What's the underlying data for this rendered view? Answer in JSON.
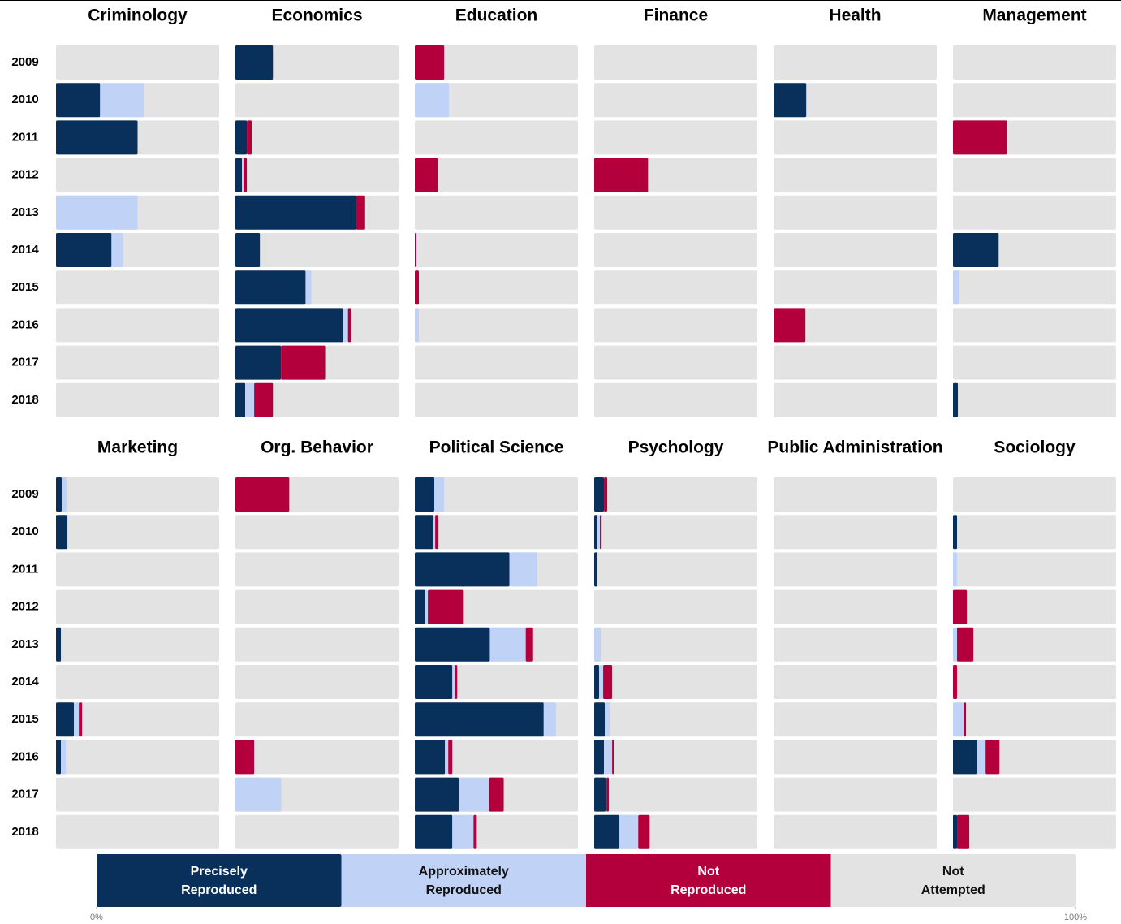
{
  "chart_data": {
    "type": "bar",
    "stacked": true,
    "categories": [
      "2009",
      "2010",
      "2011",
      "2012",
      "2013",
      "2014",
      "2015",
      "2016",
      "2017",
      "2018"
    ],
    "series": [
      {
        "name": "Precisely Reproduced",
        "color": "#08305a"
      },
      {
        "name": "Approximately Reproduced",
        "color": "#c0d2f5"
      },
      {
        "name": "Not Reproduced",
        "color": "#b3003c"
      },
      {
        "name": "Not Attempted",
        "color": "#e3e3e3"
      }
    ],
    "xlim": [
      0,
      100
    ],
    "xticks": [
      {
        "value": 0,
        "label": "0%"
      },
      {
        "value": 100,
        "label": "100%"
      }
    ],
    "panels": [
      {
        "title": "Criminology",
        "values": [
          [
            0,
            27,
            50,
            0,
            0,
            34,
            0,
            0,
            0,
            0
          ],
          [
            0,
            27,
            0,
            0,
            50,
            7,
            0,
            0,
            0,
            0
          ],
          [
            0,
            0,
            0,
            0,
            0,
            0,
            0,
            0,
            0,
            0
          ]
        ]
      },
      {
        "title": "Economics",
        "values": [
          [
            23,
            0,
            7,
            4,
            74,
            15,
            43,
            66,
            28,
            6
          ],
          [
            0,
            0,
            0,
            1,
            0,
            0,
            3.5,
            3,
            0,
            5.5
          ],
          [
            0,
            0,
            3,
            2,
            5.5,
            0,
            0,
            2,
            27,
            11.5
          ]
        ]
      },
      {
        "title": "Education",
        "values": [
          [
            0,
            0,
            0,
            0,
            0,
            0,
            0,
            0,
            0,
            0
          ],
          [
            0,
            21,
            0,
            0,
            0,
            0,
            0,
            2.5,
            0,
            0
          ],
          [
            18,
            0,
            0,
            14,
            0,
            1,
            2.5,
            0,
            0,
            0
          ]
        ]
      },
      {
        "title": "Finance",
        "values": [
          [
            0,
            0,
            0,
            0,
            0,
            0,
            0,
            0,
            0,
            0
          ],
          [
            0,
            0,
            0,
            0,
            0,
            0,
            0,
            0,
            0,
            0
          ],
          [
            0,
            0,
            0,
            33,
            0,
            0,
            0,
            0,
            0,
            0
          ]
        ]
      },
      {
        "title": "Health",
        "values": [
          [
            0,
            20,
            0,
            0,
            0,
            0,
            0,
            0,
            0,
            0
          ],
          [
            0,
            0,
            0,
            0,
            0,
            0,
            0,
            0,
            0,
            0
          ],
          [
            0,
            0,
            0,
            0,
            0,
            0,
            0,
            19.5,
            0,
            0
          ]
        ]
      },
      {
        "title": "Management",
        "values": [
          [
            0,
            0,
            0,
            0,
            0,
            28,
            0,
            0,
            0,
            3
          ],
          [
            0,
            0,
            0,
            0,
            0,
            0,
            4,
            0,
            0,
            0
          ],
          [
            0,
            0,
            33,
            0,
            0,
            0,
            0,
            0,
            0,
            0
          ]
        ]
      },
      {
        "title": "Marketing",
        "values": [
          [
            3.5,
            7,
            0,
            0,
            3,
            0,
            11,
            3,
            0,
            0
          ],
          [
            3,
            0,
            0,
            0,
            0,
            0,
            3,
            3,
            0,
            0
          ],
          [
            0,
            0,
            0,
            0,
            0,
            0,
            2,
            0,
            0,
            0
          ]
        ]
      },
      {
        "title": "Org. Behavior",
        "values": [
          [
            0,
            0,
            0,
            0,
            0,
            0,
            0,
            0,
            0,
            0
          ],
          [
            0,
            0,
            0,
            0,
            0,
            0,
            0,
            0,
            28,
            0
          ],
          [
            33,
            0,
            0,
            0,
            0,
            0,
            0,
            11.5,
            0,
            0
          ]
        ]
      },
      {
        "title": "Political Science",
        "values": [
          [
            12,
            11.5,
            58,
            6.5,
            46,
            23,
            79,
            18.5,
            27,
            23
          ],
          [
            6,
            1,
            17,
            1.5,
            22,
            1.5,
            7.5,
            2,
            18.5,
            13
          ],
          [
            0,
            2,
            0,
            22,
            4.5,
            1.5,
            0,
            2.5,
            9,
            2
          ]
        ]
      },
      {
        "title": "Psychology",
        "values": [
          [
            6,
            2,
            2,
            0,
            0,
            3,
            6.5,
            6,
            7,
            15.5
          ],
          [
            0,
            1.5,
            0,
            0,
            4,
            2.5,
            3.5,
            5,
            0.5,
            11.5
          ],
          [
            2,
            1,
            0,
            0,
            0,
            5.5,
            0,
            1,
            1.5,
            7
          ]
        ]
      },
      {
        "title": "Public Administration",
        "values": [
          [
            0,
            0,
            0,
            0,
            0,
            0,
            0,
            0,
            0,
            0
          ],
          [
            0,
            0,
            0,
            0,
            0,
            0,
            0,
            0,
            0,
            0
          ],
          [
            0,
            0,
            0,
            0,
            0,
            0,
            0,
            0,
            0,
            0
          ]
        ]
      },
      {
        "title": "Sociology",
        "values": [
          [
            0,
            2.5,
            0,
            0,
            0,
            0,
            0,
            14.5,
            0,
            2.5
          ],
          [
            0,
            0,
            2.5,
            0,
            2.5,
            0,
            6.5,
            5.5,
            0,
            0
          ],
          [
            0,
            0,
            0,
            8.5,
            10,
            2.5,
            1.5,
            8.5,
            0,
            7.5
          ]
        ]
      }
    ]
  }
}
